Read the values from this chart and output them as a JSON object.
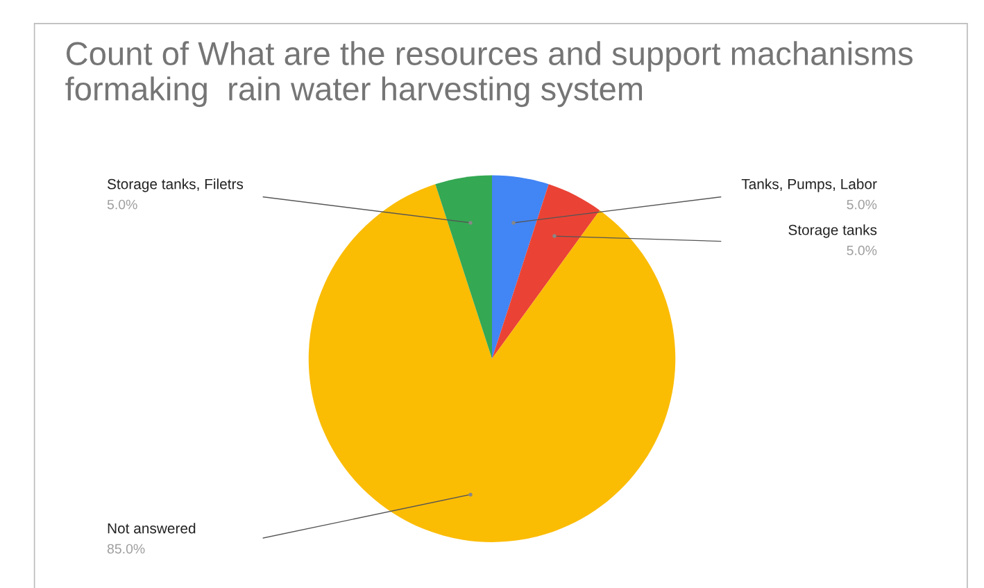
{
  "chart_data": {
    "type": "pie",
    "title": "Count of What are the resources and support machanisms formaking  rain water harvesting system",
    "categories": [
      "Tanks, Pumps, Labor",
      "Storage tanks",
      "Not answered",
      "Storage tanks, Filetrs"
    ],
    "values": [
      5,
      5,
      85,
      5
    ],
    "colors": [
      "#4285f4",
      "#ea4335",
      "#fbbc04",
      "#34a853"
    ],
    "value_labels": [
      "5.0%",
      "5.0%",
      "85.0%",
      "5.0%"
    ],
    "legend": false
  }
}
